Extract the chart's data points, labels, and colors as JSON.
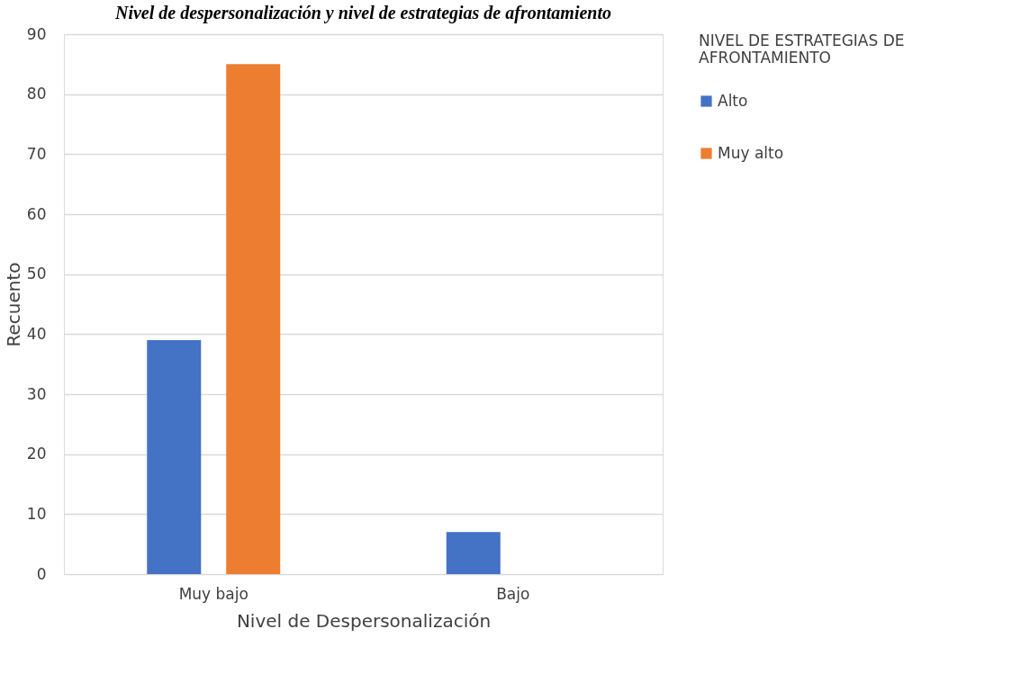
{
  "chart_data": {
    "type": "bar",
    "title": "Nivel de despersonalización y nivel de estrategias de afrontamiento",
    "categories": [
      "Muy bajo",
      "Bajo"
    ],
    "series": [
      {
        "name": "Alto",
        "color": "#4472c4",
        "values": [
          39,
          7
        ]
      },
      {
        "name": "Muy alto",
        "color": "#ed7d31",
        "values": [
          85,
          null
        ]
      }
    ],
    "xlabel": "Nivel de Despersonalización",
    "ylabel": "Recuento",
    "legend_title": "NIVEL DE ESTRATEGIAS DE AFRONTAMIENTO",
    "ylim": [
      0,
      90
    ],
    "yticks": [
      0,
      10,
      20,
      30,
      40,
      50,
      60,
      70,
      80,
      90
    ],
    "grid": "y",
    "legend": "right"
  }
}
